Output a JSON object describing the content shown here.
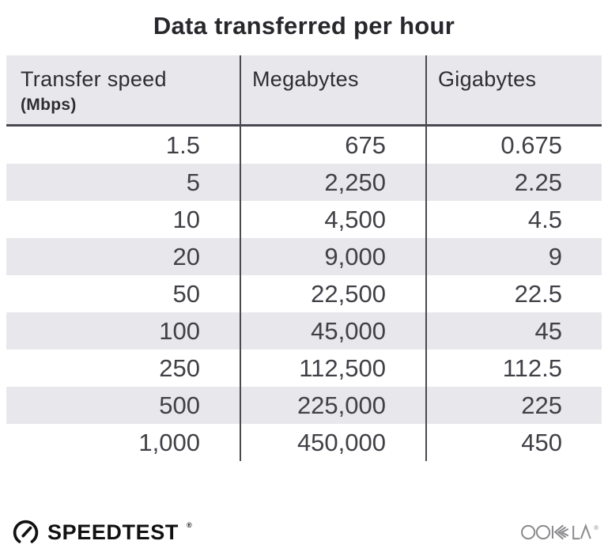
{
  "title": "Data transferred per hour",
  "table": {
    "columns": [
      {
        "label": "Transfer speed",
        "sublabel": "(Mbps)"
      },
      {
        "label": "Megabytes"
      },
      {
        "label": "Gigabytes"
      }
    ],
    "rows": [
      [
        "1.5",
        "675",
        "0.675"
      ],
      [
        "5",
        "2,250",
        "2.25"
      ],
      [
        "10",
        "4,500",
        "4.5"
      ],
      [
        "20",
        "9,000",
        "9"
      ],
      [
        "50",
        "22,500",
        "22.5"
      ],
      [
        "100",
        "45,000",
        "45"
      ],
      [
        "250",
        "112,500",
        "112.5"
      ],
      [
        "500",
        "225,000",
        "225"
      ],
      [
        "1,000",
        "450,000",
        "450"
      ]
    ]
  },
  "footer": {
    "speedtest_label": "SPEEDTEST",
    "speedtest_trademark": "®",
    "ookla_label": "OOKLA",
    "ookla_trademark": "®"
  },
  "colors": {
    "header_bg": "#e8e7eb",
    "stripe_bg": "#e8e7eb",
    "divider": "#4b4950",
    "title_text": "#28272c",
    "header_text": "#2e2d32",
    "cell_text": "#414046",
    "speedtest_logo": "#111111",
    "ookla_logo": "#8b8a8e"
  },
  "chart_data": {
    "type": "table",
    "title": "Data transferred per hour",
    "columns": [
      "Transfer speed (Mbps)",
      "Megabytes",
      "Gigabytes"
    ],
    "rows": [
      [
        1.5,
        675,
        0.675
      ],
      [
        5,
        2250,
        2.25
      ],
      [
        10,
        4500,
        4.5
      ],
      [
        20,
        9000,
        9
      ],
      [
        50,
        22500,
        22.5
      ],
      [
        100,
        45000,
        45
      ],
      [
        250,
        112500,
        112.5
      ],
      [
        500,
        225000,
        225
      ],
      [
        1000,
        450000,
        450
      ]
    ]
  }
}
